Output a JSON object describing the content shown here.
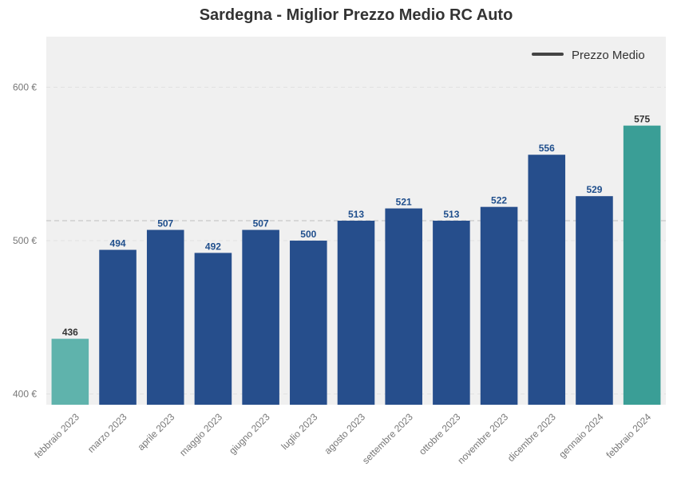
{
  "chart_data": {
    "type": "bar",
    "title": "Sardegna - Miglior Prezzo Medio RC Auto",
    "xlabel": "",
    "ylabel": "",
    "categories": [
      "febbraio 2023",
      "marzo 2023",
      "aprile 2023",
      "maggio 2023",
      "giugno 2023",
      "luglio 2023",
      "agosto 2023",
      "settembre 2023",
      "ottobre 2023",
      "novembre 2023",
      "dicembre 2023",
      "gennaio 2024",
      "febbraio 2024"
    ],
    "values": [
      436,
      494,
      507,
      492,
      507,
      500,
      513,
      521,
      513,
      522,
      556,
      529,
      575
    ],
    "ylim": [
      393,
      633
    ],
    "yticks": [
      400,
      500,
      600
    ],
    "ytick_labels": [
      "400 €",
      "500 €",
      "600 €"
    ],
    "average_line": 513,
    "legend": {
      "label": "Prezzo Medio",
      "placement": "top-right"
    },
    "grid": true,
    "colors": {
      "default_bar": "#264e8c",
      "first_bar": "#5fb3ac",
      "last_bar": "#3a9e96",
      "default_label": "#1f4e8c",
      "highlight_label": "#333333",
      "background": "#f0f0f0",
      "average_line": "#c8c8c8"
    }
  }
}
